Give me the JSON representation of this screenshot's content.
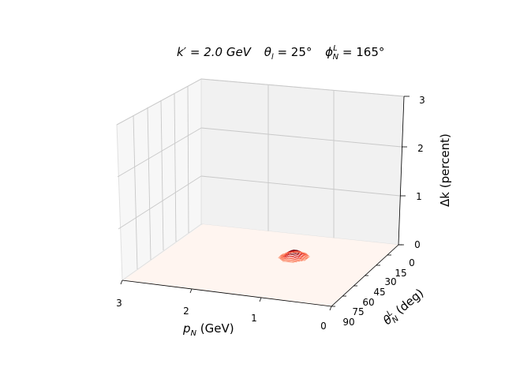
{
  "chart_data": {
    "type": "surface",
    "title_parts": {
      "k": "k′ = 2.0 GeV",
      "theta_l": "θ",
      "theta_l_sub": "l",
      "theta_l_val": " = 25°",
      "phi": "ϕ",
      "phi_sub": "N",
      "phi_sup": "L",
      "phi_val": " = 165°"
    },
    "xlabel": {
      "main": "p",
      "sub": "N",
      "unit": " (GeV)"
    },
    "ylabel": {
      "main": "θ",
      "sub": "N",
      "sup": "L",
      "unit": " (deg)"
    },
    "zlabel": "Δk (percent)",
    "x_ticks": [
      "3",
      "2",
      "1",
      "0"
    ],
    "y_ticks": [
      "0",
      "15",
      "30",
      "45",
      "60",
      "75",
      "90"
    ],
    "z_ticks": [
      "0",
      "1",
      "2",
      "3"
    ],
    "xlim": [
      0,
      3
    ],
    "ylim": [
      0,
      90
    ],
    "zlim": [
      0,
      3
    ],
    "colormap": "Reds",
    "surface_base_color": "#fff5f0",
    "peak_region": {
      "p_N": [
        1.0,
        1.4
      ],
      "theta_N": [
        25,
        40
      ],
      "peak_value": 0.15
    }
  }
}
